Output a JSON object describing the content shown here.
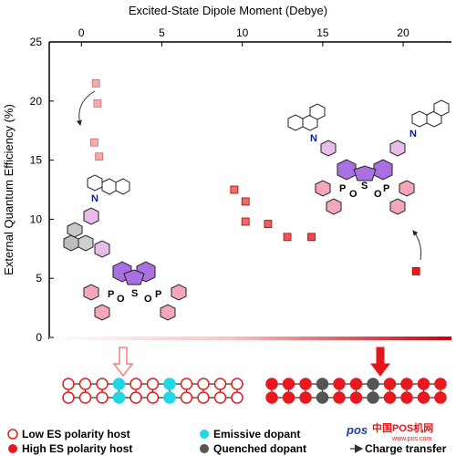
{
  "chart_data": {
    "type": "scatter",
    "xlabel": "Excited-State Dipole Moment (Debye)",
    "ylabel": "External Quantum Efficiency (%)",
    "xlim": [
      -2,
      23
    ],
    "ylim": [
      0,
      25
    ],
    "x_ticks": [
      "0",
      "5",
      "10",
      "15",
      "20"
    ],
    "y_ticks": [
      "0",
      "5",
      "10",
      "15",
      "20",
      "25"
    ],
    "x_axis_position": "top",
    "grid": false,
    "points": [
      {
        "x": 0.9,
        "y": 21.5
      },
      {
        "x": 1.0,
        "y": 19.8
      },
      {
        "x": 0.8,
        "y": 16.5
      },
      {
        "x": 1.1,
        "y": 15.3
      },
      {
        "x": 9.5,
        "y": 12.5
      },
      {
        "x": 10.2,
        "y": 11.5
      },
      {
        "x": 10.2,
        "y": 9.8
      },
      {
        "x": 11.6,
        "y": 9.6
      },
      {
        "x": 12.8,
        "y": 8.5
      },
      {
        "x": 14.3,
        "y": 8.5
      },
      {
        "x": 20.8,
        "y": 5.6
      }
    ],
    "colors": {
      "low": "#f4b4b4",
      "high": "#e8191e",
      "emissive": "#23d6e6",
      "quenched": "#555555",
      "arrow_outline": "#f08080",
      "arrow_fill": "#e3161b"
    }
  },
  "molecules": {
    "left": {
      "n_label": "N",
      "s_label": "S",
      "p_labels": [
        "P",
        "P"
      ],
      "o_labels": [
        "O",
        "O"
      ]
    },
    "right": {
      "n_labels": [
        "N",
        "N"
      ],
      "s_label": "S",
      "p_labels": [
        "P",
        "P"
      ],
      "o_labels": [
        "O",
        "O"
      ]
    }
  },
  "legend": {
    "items": [
      {
        "label": "Low ES polarity host"
      },
      {
        "label": "High ES polarity host"
      },
      {
        "label": "Emissive dopant"
      },
      {
        "label": "Quenched dopant"
      },
      {
        "label": "Charge transfer"
      }
    ]
  },
  "watermark": {
    "text": "中国POS机网",
    "url": "www.pos.com"
  }
}
